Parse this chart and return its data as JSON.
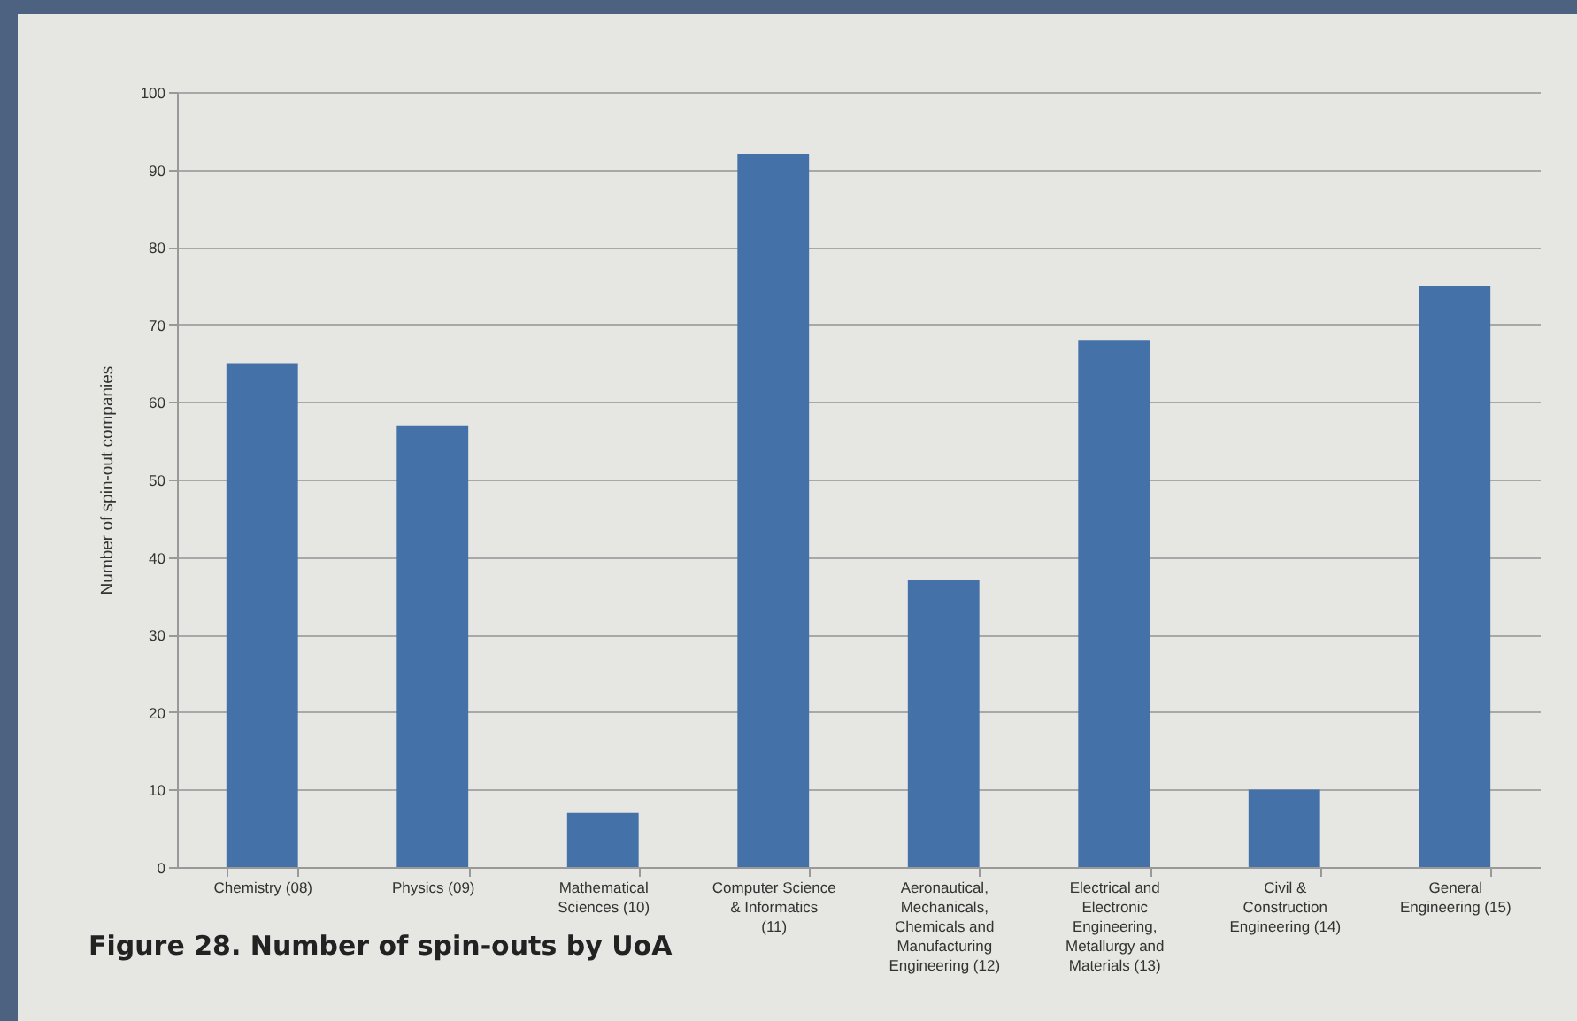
{
  "chart_data": {
    "type": "bar",
    "title": "Figure 28. Number of spin-outs by UoA",
    "ylabel": "Number of spin-out companies",
    "categories": [
      "Chemistry (08)",
      "Physics (09)",
      "Mathematical Sciences (10)",
      "Computer Science & Informatics (11)",
      "Aeronautical, Mechanicals, Chemicals and Manufacturing Engineering (12)",
      "Electrical and Electronic Engineering, Metallurgy and Materials (13)",
      "Civil & Construction Engineering (14)",
      "General Engineering (15)"
    ],
    "values": [
      65,
      57,
      7,
      92,
      37,
      68,
      10,
      75
    ],
    "color": "#4472a8",
    "ylim": [
      0,
      100
    ],
    "yticks": [
      0,
      10,
      20,
      30,
      40,
      50,
      60,
      70,
      80,
      90,
      100
    ],
    "grid": "y"
  }
}
